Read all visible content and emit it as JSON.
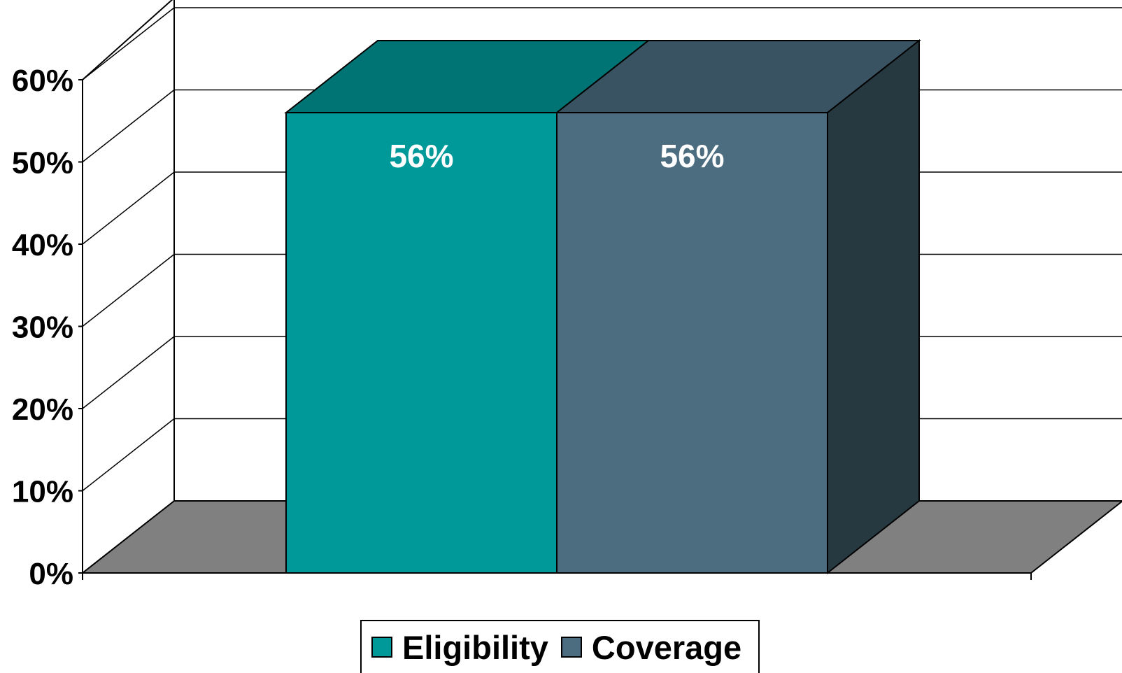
{
  "chart_data": {
    "type": "bar",
    "style": "3d-clustered-column",
    "categories": [
      ""
    ],
    "series": [
      {
        "name": "Eligibility",
        "values": [
          56
        ],
        "color": "#009999",
        "top_color": "#007474",
        "data_label": "56%"
      },
      {
        "name": "Coverage",
        "values": [
          56
        ],
        "color": "#4C6C80",
        "top_color": "#3A5362",
        "side_color": "#263840",
        "data_label": "56%"
      }
    ],
    "ylim": [
      0,
      60
    ],
    "yticks": [
      0,
      10,
      20,
      30,
      40,
      50,
      60
    ],
    "ytick_labels": [
      "0%",
      "10%",
      "20%",
      "30%",
      "40%",
      "50%",
      "60%"
    ],
    "grid": true,
    "legend_position": "bottom",
    "floor_color": "#808080",
    "title": "",
    "xlabel": "",
    "ylabel": ""
  }
}
